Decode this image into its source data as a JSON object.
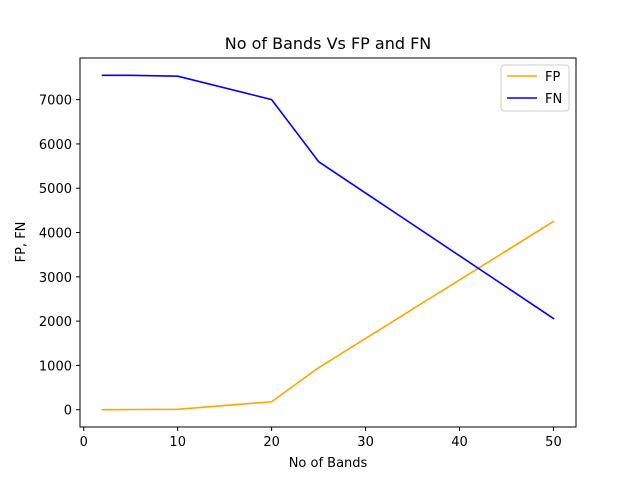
{
  "chart_data": {
    "type": "line",
    "title": "No of Bands Vs FP and FN",
    "xlabel": "No of Bands",
    "ylabel": "FP, FN",
    "xlim": [
      -0.4,
      52.4
    ],
    "ylim": [
      -390,
      7940
    ],
    "xticks": [
      0,
      10,
      20,
      30,
      40,
      50
    ],
    "yticks": [
      0,
      1000,
      2000,
      3000,
      4000,
      5000,
      6000,
      7000
    ],
    "grid": false,
    "legend_position": "top-right",
    "x": [
      2,
      5,
      10,
      20,
      25,
      50
    ],
    "series": [
      {
        "name": "FP",
        "color": "#FFA500",
        "values": [
          0,
          5,
          10,
          180,
          950,
          4250
        ]
      },
      {
        "name": "FN",
        "color": "#0000FF",
        "values": [
          7550,
          7550,
          7530,
          7000,
          5600,
          2060
        ]
      }
    ]
  }
}
